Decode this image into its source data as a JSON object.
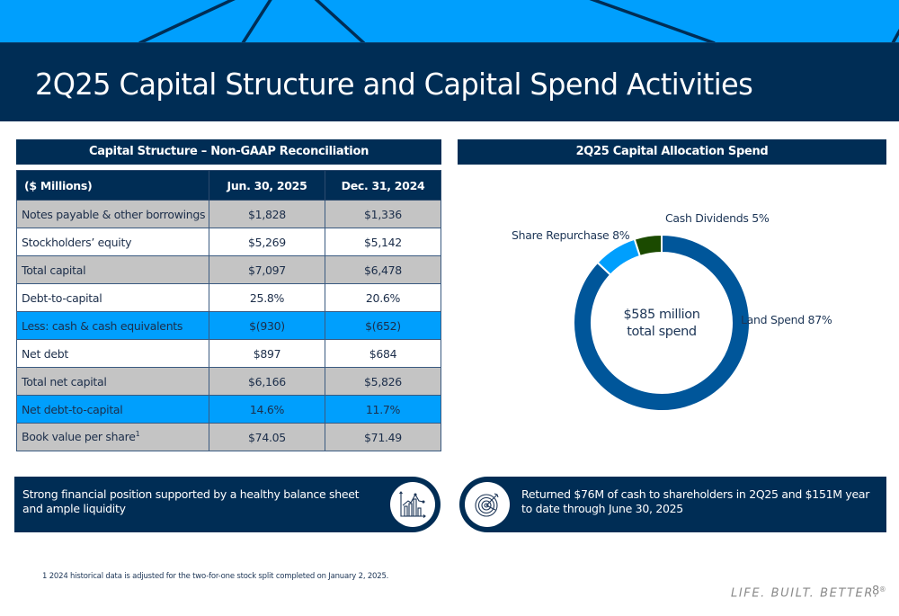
{
  "header": {
    "title": "2Q25 Capital Structure and Capital Spend Activities"
  },
  "colors": {
    "navy": "#002d55",
    "bright_blue": "#009ffd",
    "gray_row": "#c4c4c4",
    "land_spend": "#00569a",
    "share_repurchase": "#009ffd",
    "cash_dividends": "#1b4a00"
  },
  "capital_structure": {
    "header": "Capital Structure – Non-GAAP Reconciliation",
    "columns": [
      "($ Millions)",
      "Jun. 30, 2025",
      "Dec. 31, 2024"
    ],
    "rows": [
      {
        "label": "Notes payable & other borrowings",
        "jun_2025": "$1,828",
        "dec_2024": "$1,336",
        "style": "gray"
      },
      {
        "label": "Stockholders’ equity",
        "jun_2025": "$5,269",
        "dec_2024": "$5,142",
        "style": "white"
      },
      {
        "label": "Total capital",
        "jun_2025": "$7,097",
        "dec_2024": "$6,478",
        "style": "gray"
      },
      {
        "label": "Debt-to-capital",
        "jun_2025": "25.8%",
        "dec_2024": "20.6%",
        "style": "white"
      },
      {
        "label": "Less: cash & cash equivalents",
        "jun_2025": "$(930)",
        "dec_2024": "$(652)",
        "style": "blue"
      },
      {
        "label": "Net debt",
        "jun_2025": "$897",
        "dec_2024": "$684",
        "style": "white"
      },
      {
        "label": "Total net capital",
        "jun_2025": "$6,166",
        "dec_2024": "$5,826",
        "style": "gray"
      },
      {
        "label": "Net debt-to-capital",
        "jun_2025": "14.6%",
        "dec_2024": "11.7%",
        "style": "blue"
      },
      {
        "label": "Book value per share",
        "footnote_ref": "1",
        "jun_2025": "$74.05",
        "dec_2024": "$71.49",
        "style": "gray"
      }
    ]
  },
  "chart_data": {
    "type": "pie",
    "title": "2Q25 Capital Allocation Spend",
    "donut": true,
    "center_label": [
      "$585 million",
      "total spend"
    ],
    "slices": [
      {
        "name": "Land Spend",
        "value": 87,
        "label": "Land Spend 87%",
        "color": "#00569a"
      },
      {
        "name": "Share Repurchase",
        "value": 8,
        "label": "Share Repurchase 8%",
        "color": "#009ffd"
      },
      {
        "name": "Cash Dividends",
        "value": 5,
        "label": "Cash Dividends 5%",
        "color": "#1b4a00"
      }
    ],
    "start": "top",
    "direction": "clockwise"
  },
  "callouts": {
    "left": {
      "text": "Strong financial position supported by a healthy balance sheet and ample liquidity",
      "icon": "chart-growth-icon"
    },
    "right": {
      "text": "Returned $76M of cash to shareholders in 2Q25 and $151M year to date through June 30, 2025",
      "icon": "target-icon"
    }
  },
  "footer": {
    "footnote": "1 2024 historical data is adjusted for the two-for-one stock split completed on January 2, 2025.",
    "tagline": "LIFE. BUILT. BETTER.",
    "trademark": "®",
    "page_number": "8"
  }
}
